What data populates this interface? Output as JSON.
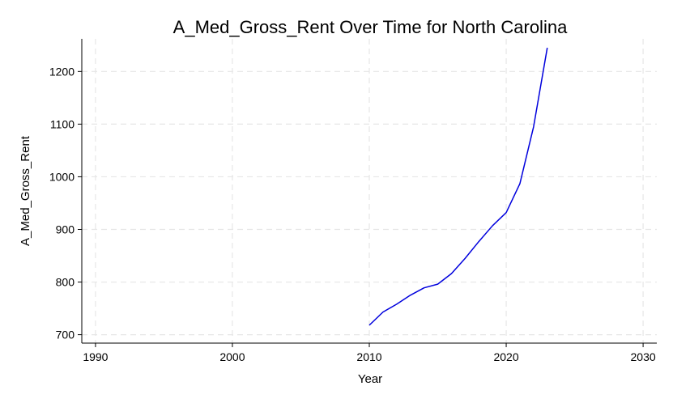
{
  "chart_data": {
    "type": "line",
    "title": "A_Med_Gross_Rent Over Time for North Carolina",
    "xlabel": "Year",
    "ylabel": "A_Med_Gross_Rent",
    "xlim": [
      1989,
      2031
    ],
    "ylim": [
      684,
      1262
    ],
    "xticks": [
      1990,
      2000,
      2010,
      2020,
      2030
    ],
    "yticks": [
      700,
      800,
      900,
      1000,
      1100,
      1200
    ],
    "grid": true,
    "legend": "none",
    "series": [
      {
        "color": "#0000dd",
        "x": [
          2010,
          2011,
          2012,
          2013,
          2014,
          2015,
          2016,
          2017,
          2018,
          2019,
          2020,
          2021,
          2022,
          2023
        ],
        "values": [
          718,
          743,
          758,
          775,
          789,
          796,
          816,
          845,
          877,
          907,
          932,
          987,
          1095,
          1245
        ]
      }
    ]
  }
}
